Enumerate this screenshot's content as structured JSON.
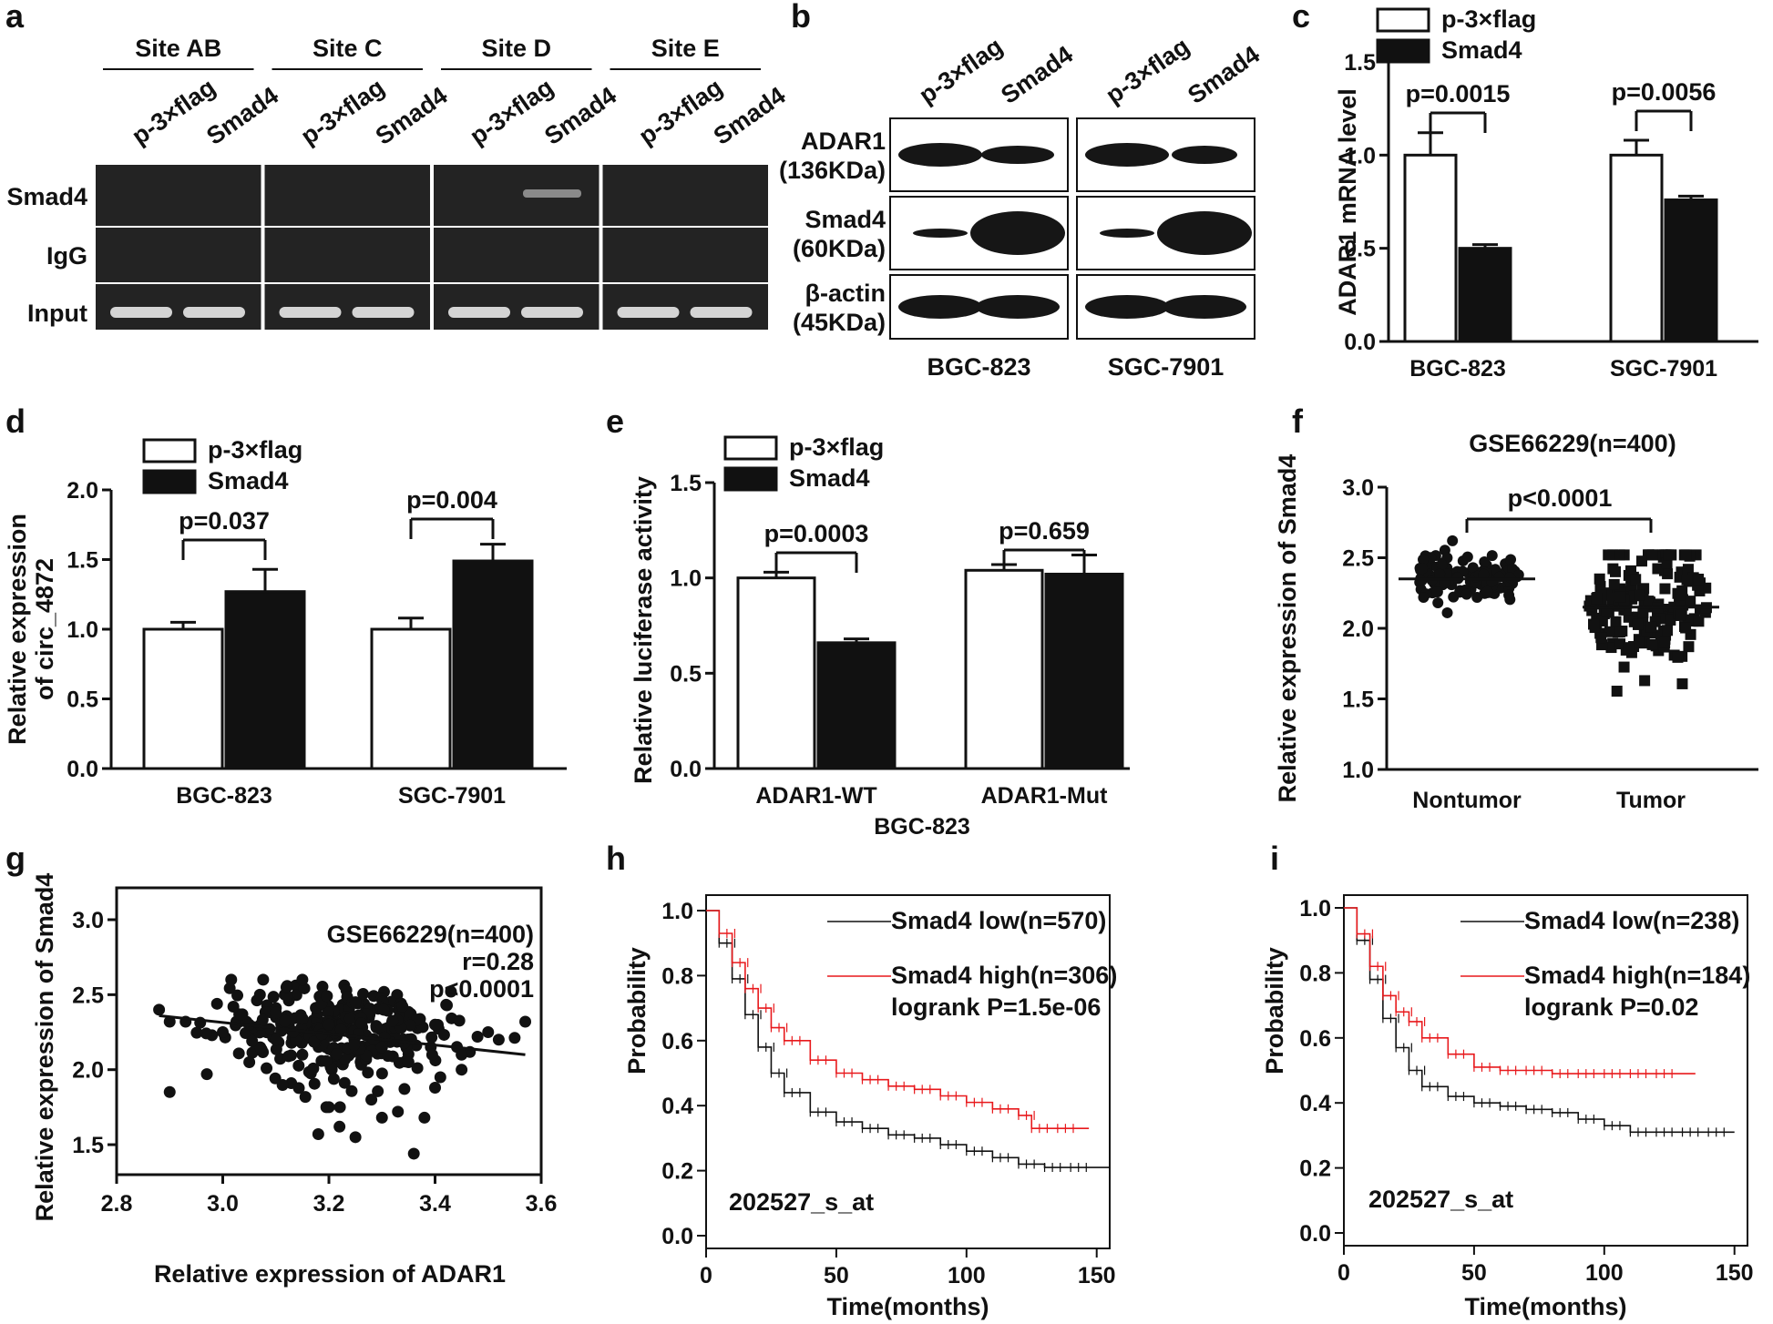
{
  "panel_letters": [
    "a",
    "b",
    "c",
    "d",
    "e",
    "f",
    "g",
    "h",
    "i"
  ],
  "colors": {
    "low": "#111111",
    "high": "#e8191c",
    "gel": "#232323",
    "band": "#e8e8e8"
  },
  "panel_a": {
    "sites": [
      "Site AB",
      "Site C",
      "Site D",
      "Site E"
    ],
    "lanes": [
      "p-3×flag",
      "Smad4"
    ],
    "rows": [
      "Smad4",
      "IgG",
      "Input"
    ]
  },
  "panel_b": {
    "lanes": [
      "p-3×flag",
      "Smad4"
    ],
    "proteins": [
      {
        "name": "ADAR1",
        "size": "(136KDa)"
      },
      {
        "name": "Smad4",
        "size": "(60KDa)"
      },
      {
        "name": "β-actin",
        "size": "(45KDa)"
      }
    ],
    "cell_lines": [
      "BGC-823",
      "SGC-7901"
    ]
  },
  "chart_data": [
    {
      "id": "c",
      "type": "bar",
      "categories": [
        "BGC-823",
        "SGC-7901"
      ],
      "series": [
        {
          "name": "p-3×flag",
          "values": [
            1.0,
            1.0
          ],
          "errors": [
            0.12,
            0.08
          ]
        },
        {
          "name": "Smad4",
          "values": [
            0.5,
            0.76
          ],
          "errors": [
            0.02,
            0.02
          ]
        }
      ],
      "ylabel": "ADAR1 mRNA level",
      "ylim": [
        0,
        1.5
      ],
      "yticks": [
        "0.0",
        "0.5",
        "1.0",
        "1.5"
      ],
      "annotations": [
        "p=0.0015",
        "p=0.0056"
      ],
      "legend": [
        "p-3×flag",
        "Smad4"
      ]
    },
    {
      "id": "d",
      "type": "bar",
      "categories": [
        "BGC-823",
        "SGC-7901"
      ],
      "series": [
        {
          "name": "p-3×flag",
          "values": [
            1.0,
            1.0
          ],
          "errors": [
            0.05,
            0.08
          ]
        },
        {
          "name": "Smad4",
          "values": [
            1.27,
            1.49
          ],
          "errors": [
            0.16,
            0.12
          ]
        }
      ],
      "ylabel": "Relative expression of circ_4872",
      "ylim": [
        0,
        2.0
      ],
      "yticks": [
        "0.0",
        "0.5",
        "1.0",
        "1.5",
        "2.0"
      ],
      "annotations": [
        "p=0.037",
        "p=0.004"
      ],
      "legend": [
        "p-3×flag",
        "Smad4"
      ]
    },
    {
      "id": "e",
      "type": "bar",
      "categories": [
        "ADAR1-WT",
        "ADAR1-Mut"
      ],
      "group_label": "BGC-823",
      "series": [
        {
          "name": "p-3×flag",
          "values": [
            1.0,
            1.04
          ],
          "errors": [
            0.03,
            0.03
          ]
        },
        {
          "name": "Smad4",
          "values": [
            0.66,
            1.02
          ],
          "errors": [
            0.02,
            0.1
          ]
        }
      ],
      "ylabel": "Relative luciferase activity",
      "ylim": [
        0,
        1.5
      ],
      "yticks": [
        "0.0",
        "0.5",
        "1.0",
        "1.5"
      ],
      "annotations": [
        "p=0.0003",
        "p=0.659"
      ],
      "legend": [
        "p-3×flag",
        "Smad4"
      ]
    },
    {
      "id": "f",
      "type": "scatter",
      "title": "GSE66229(n=400)",
      "categories": [
        "Nontumor",
        "Tumor"
      ],
      "groups": [
        {
          "name": "Nontumor",
          "mean": 2.35,
          "min": 2.1,
          "max": 2.62
        },
        {
          "name": "Tumor",
          "mean": 2.15,
          "min": 1.44,
          "max": 2.52
        }
      ],
      "ylabel": "Relative expression of Smad4",
      "ylim": [
        1.0,
        3.0
      ],
      "yticks": [
        "1.0",
        "1.5",
        "2.0",
        "2.5",
        "3.0"
      ],
      "annotation": "p<0.0001"
    },
    {
      "id": "g",
      "type": "scatter",
      "title": "GSE66229(n=400)",
      "stats": [
        "r=0.28",
        "p<0.0001"
      ],
      "xlabel": "Relative expression of ADAR1",
      "ylabel": "Relative expression of Smad4",
      "xlim": [
        2.8,
        3.6
      ],
      "ylim": [
        1.3,
        3.0
      ],
      "xticks": [
        "2.8",
        "3.0",
        "3.2",
        "3.4",
        "3.6"
      ],
      "yticks": [
        "1.5",
        "2.0",
        "2.5",
        "3.0"
      ],
      "fit_line": {
        "x": [
          2.88,
          3.57
        ],
        "y": [
          2.36,
          2.1
        ]
      },
      "points": [
        [
          2.88,
          2.4
        ],
        [
          2.9,
          2.32
        ],
        [
          2.93,
          2.32
        ],
        [
          2.97,
          1.97
        ],
        [
          3.02,
          2.42
        ],
        [
          3.05,
          2.05
        ],
        [
          3.07,
          2.5
        ],
        [
          3.1,
          2.38
        ],
        [
          3.12,
          2.55
        ],
        [
          3.15,
          2.6
        ],
        [
          3.18,
          1.57
        ],
        [
          3.2,
          1.75
        ],
        [
          3.22,
          1.62
        ],
        [
          3.25,
          1.55
        ],
        [
          3.28,
          1.8
        ],
        [
          3.3,
          1.68
        ],
        [
          3.33,
          1.72
        ],
        [
          3.36,
          1.44
        ],
        [
          3.38,
          1.68
        ],
        [
          3.4,
          1.88
        ],
        [
          3.43,
          2.52
        ],
        [
          3.45,
          2.0
        ],
        [
          3.48,
          2.22
        ],
        [
          3.5,
          2.25
        ],
        [
          3.52,
          2.2
        ],
        [
          3.57,
          2.32
        ],
        [
          3.0,
          2.25
        ],
        [
          3.1,
          2.2
        ],
        [
          3.2,
          2.3
        ],
        [
          3.3,
          2.15
        ],
        [
          3.35,
          2.05
        ],
        [
          3.25,
          2.45
        ],
        [
          3.15,
          2.1
        ],
        [
          3.05,
          2.3
        ],
        [
          3.4,
          2.3
        ],
        [
          3.45,
          2.1
        ]
      ],
      "cloud": {
        "count": 300,
        "x_mean": 3.22,
        "x_sd": 0.11,
        "y_mean": 2.24,
        "y_sd": 0.16
      }
    },
    {
      "id": "h",
      "type": "line",
      "legend": [
        "Smad4 low(n=570)",
        "Smad4 high(n=306)",
        "logrank P=1.5e-06"
      ],
      "probe": "202527_s_at",
      "xlabel": "Time(months)",
      "ylabel": "Probability",
      "xlim": [
        0,
        155
      ],
      "ylim": [
        0,
        1.0
      ],
      "xticks": [
        "0",
        "50",
        "100",
        "150"
      ],
      "yticks": [
        "0.0",
        "0.2",
        "0.4",
        "0.6",
        "0.8",
        "1.0"
      ],
      "series": [
        {
          "name": "Smad4 low(n=570)",
          "x": [
            0,
            5,
            10,
            15,
            20,
            25,
            30,
            40,
            50,
            60,
            70,
            80,
            90,
            100,
            110,
            120,
            130,
            140,
            155
          ],
          "y": [
            1.0,
            0.9,
            0.79,
            0.68,
            0.58,
            0.5,
            0.44,
            0.38,
            0.35,
            0.33,
            0.31,
            0.3,
            0.28,
            0.26,
            0.24,
            0.22,
            0.21,
            0.21,
            0.21
          ]
        },
        {
          "name": "Smad4 high(n=306)",
          "x": [
            0,
            5,
            10,
            15,
            20,
            25,
            30,
            40,
            50,
            60,
            70,
            80,
            90,
            100,
            110,
            120,
            125,
            135,
            147
          ],
          "y": [
            1.0,
            0.93,
            0.84,
            0.76,
            0.7,
            0.64,
            0.6,
            0.54,
            0.5,
            0.48,
            0.46,
            0.45,
            0.43,
            0.41,
            0.39,
            0.37,
            0.33,
            0.33,
            0.33
          ]
        }
      ]
    },
    {
      "id": "i",
      "type": "line",
      "legend": [
        "Smad4 low(n=238)",
        "Smad4 high(n=184)",
        "logrank P=0.02"
      ],
      "probe": "202527_s_at",
      "xlabel": "Time(months)",
      "ylabel": "Probability",
      "xlim": [
        0,
        155
      ],
      "ylim": [
        0,
        1.0
      ],
      "xticks": [
        "0",
        "50",
        "100",
        "150"
      ],
      "yticks": [
        "0.0",
        "0.2",
        "0.4",
        "0.6",
        "0.8",
        "1.0"
      ],
      "series": [
        {
          "name": "Smad4 low(n=238)",
          "x": [
            0,
            5,
            10,
            15,
            20,
            25,
            30,
            40,
            50,
            60,
            70,
            80,
            90,
            100,
            110,
            120,
            130,
            140,
            150
          ],
          "y": [
            1.0,
            0.9,
            0.78,
            0.66,
            0.57,
            0.5,
            0.45,
            0.42,
            0.4,
            0.39,
            0.38,
            0.37,
            0.35,
            0.33,
            0.31,
            0.31,
            0.31,
            0.31,
            0.31
          ]
        },
        {
          "name": "Smad4 high(n=184)",
          "x": [
            0,
            5,
            10,
            15,
            20,
            25,
            30,
            40,
            50,
            60,
            70,
            80,
            90,
            100,
            110,
            120,
            135
          ],
          "y": [
            1.0,
            0.92,
            0.82,
            0.73,
            0.68,
            0.65,
            0.6,
            0.55,
            0.51,
            0.5,
            0.5,
            0.49,
            0.49,
            0.49,
            0.49,
            0.49,
            0.49
          ]
        }
      ]
    }
  ]
}
